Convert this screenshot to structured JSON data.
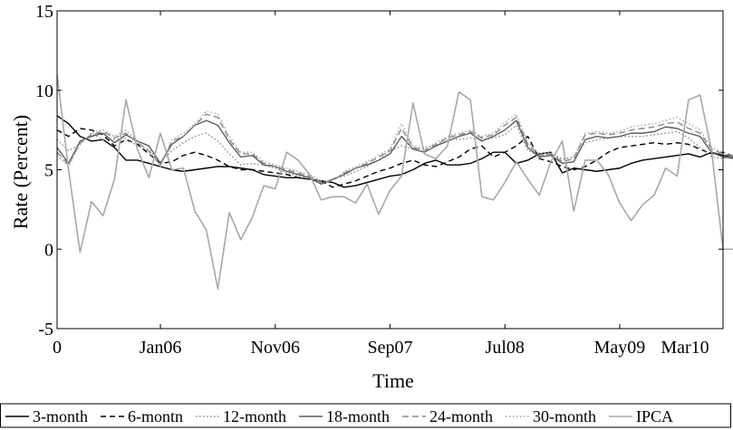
{
  "chart_data": {
    "type": "line",
    "xlabel": "Time",
    "ylabel": "Rate (Percent)",
    "xlim": [
      0,
      58
    ],
    "ylim": [
      -5,
      15
    ],
    "y_ticks": [
      -5,
      0,
      5,
      10,
      15
    ],
    "x_ticks": [
      {
        "x": 0,
        "label": "0"
      },
      {
        "x": 9,
        "label": "Jan06"
      },
      {
        "x": 19,
        "label": "Nov06"
      },
      {
        "x": 29,
        "label": "Sep07"
      },
      {
        "x": 39,
        "label": "Jul08"
      },
      {
        "x": 49,
        "label": "May09"
      },
      {
        "x": 59,
        "label": "Mar10"
      }
    ],
    "grid": false,
    "legend": "bottom",
    "series": [
      {
        "name": "3-month",
        "color": "#000000",
        "dash": "solid",
        "values": [
          8.4,
          7.9,
          7.1,
          6.8,
          6.9,
          6.4,
          5.6,
          5.6,
          5.4,
          5.2,
          5.0,
          4.9,
          5.0,
          5.1,
          5.2,
          5.2,
          5.1,
          5.0,
          4.7,
          4.6,
          4.5,
          4.5,
          4.4,
          4.3,
          4.2,
          3.9,
          4.0,
          4.2,
          4.4,
          4.6,
          4.7,
          5.0,
          5.4,
          5.6,
          5.3,
          5.3,
          5.4,
          5.7,
          6.1,
          6.1,
          5.4,
          5.6,
          6.0,
          6.1,
          4.8,
          5.1,
          5.0,
          4.9,
          5.0,
          5.1,
          5.4,
          5.6,
          5.7,
          5.8,
          5.9,
          6.0,
          5.8,
          6.1,
          5.9,
          5.8
        ]
      },
      {
        "name": "6-montn",
        "color": "#000000",
        "dash": "6,4",
        "values": [
          7.5,
          7.1,
          7.6,
          7.5,
          7.2,
          6.5,
          6.9,
          6.6,
          6.0,
          5.4,
          5.5,
          5.9,
          6.1,
          5.9,
          5.6,
          5.2,
          5.0,
          5.0,
          4.9,
          4.8,
          4.7,
          4.5,
          4.4,
          4.3,
          3.9,
          4.1,
          4.3,
          4.6,
          4.9,
          5.1,
          5.4,
          5.6,
          5.3,
          5.2,
          5.5,
          5.8,
          6.3,
          6.5,
          5.8,
          6.1,
          6.5,
          7.1,
          5.7,
          5.5,
          5.2,
          5.0,
          5.2,
          5.6,
          6.1,
          6.4,
          6.5,
          6.6,
          6.7,
          6.6,
          6.7,
          6.6,
          6.3,
          6.0,
          6.1,
          5.8
        ]
      },
      {
        "name": "12-month",
        "color": "#8a8a8a",
        "dash": "1.5,2.5",
        "values": [
          6.9,
          6.2,
          6.6,
          7.3,
          6.9,
          6.9,
          7.0,
          6.5,
          6.2,
          5.5,
          6.2,
          6.7,
          7.1,
          7.3,
          6.8,
          6.0,
          5.3,
          5.4,
          5.3,
          5.1,
          4.8,
          4.6,
          4.4,
          4.1,
          4.4,
          4.6,
          4.9,
          5.2,
          5.6,
          6.2,
          6.5,
          6.3,
          6.4,
          6.5,
          7.0,
          6.9,
          7.0,
          6.9,
          7.0,
          7.2,
          7.8,
          6.2,
          5.9,
          6.0,
          5.7,
          5.8,
          6.7,
          6.9,
          7.0,
          7.1,
          7.1,
          7.1,
          7.2,
          7.3,
          7.4,
          7.0,
          6.4,
          5.8,
          5.7,
          5.9
        ]
      },
      {
        "name": "18-month",
        "color": "#5e5e5e",
        "dash": "solid",
        "values": [
          6.4,
          5.4,
          6.8,
          7.1,
          7.3,
          6.7,
          7.2,
          6.8,
          6.5,
          5.4,
          6.6,
          7.1,
          7.8,
          8.1,
          7.8,
          6.7,
          5.8,
          5.9,
          5.3,
          5.2,
          4.9,
          4.7,
          4.5,
          4.1,
          4.4,
          4.7,
          5.1,
          5.3,
          5.6,
          6.0,
          7.1,
          6.3,
          6.1,
          6.5,
          6.8,
          7.1,
          7.3,
          6.8,
          7.1,
          7.5,
          8.1,
          6.4,
          5.8,
          5.9,
          5.4,
          5.5,
          6.9,
          7.1,
          7.0,
          7.1,
          7.3,
          7.3,
          7.4,
          7.7,
          7.6,
          7.3,
          7.1,
          6.1,
          5.8,
          5.7
        ]
      },
      {
        "name": "24-month",
        "color": "#8a8a8a",
        "dash": "7,4",
        "values": [
          6.1,
          5.3,
          6.7,
          7.2,
          7.4,
          7.0,
          7.3,
          6.7,
          6.2,
          5.3,
          6.8,
          7.1,
          7.8,
          8.5,
          8.3,
          6.9,
          6.0,
          6.0,
          5.4,
          5.2,
          5.0,
          4.8,
          4.6,
          4.2,
          4.3,
          4.8,
          5.1,
          5.4,
          5.8,
          6.2,
          7.6,
          6.4,
          6.2,
          6.6,
          7.0,
          7.2,
          7.4,
          7.0,
          7.2,
          7.8,
          8.3,
          6.6,
          5.9,
          6.0,
          5.5,
          5.7,
          7.2,
          7.3,
          7.2,
          7.3,
          7.5,
          7.6,
          7.7,
          7.9,
          8.0,
          7.6,
          7.3,
          6.3,
          6.0,
          5.8
        ]
      },
      {
        "name": "30-month",
        "color": "#a6a6a6",
        "dash": "1.5,2.5",
        "values": [
          5.9,
          5.2,
          6.6,
          7.3,
          7.5,
          7.1,
          7.5,
          6.8,
          6.1,
          5.2,
          6.9,
          7.3,
          7.9,
          8.7,
          8.5,
          7.1,
          6.1,
          6.1,
          5.5,
          5.3,
          5.1,
          4.9,
          4.7,
          4.3,
          4.3,
          4.9,
          5.2,
          5.5,
          5.9,
          6.3,
          7.9,
          6.5,
          6.3,
          6.7,
          7.1,
          7.3,
          7.5,
          7.1,
          7.3,
          8.0,
          8.5,
          6.7,
          6.0,
          6.1,
          5.6,
          5.8,
          7.3,
          7.4,
          7.3,
          7.4,
          7.7,
          7.8,
          7.9,
          8.1,
          8.3,
          7.9,
          7.5,
          6.4,
          6.1,
          5.9
        ]
      },
      {
        "name": "IPCA",
        "color": "#a8a8a8",
        "dash": "solid",
        "values": [
          11.0,
          5.0,
          -0.2,
          3.0,
          2.1,
          4.4,
          9.4,
          6.3,
          4.5,
          7.3,
          5.0,
          5.1,
          2.4,
          1.2,
          -2.5,
          2.3,
          0.6,
          2.0,
          4.0,
          3.8,
          6.1,
          5.6,
          4.7,
          3.1,
          3.3,
          3.3,
          2.9,
          4.1,
          2.2,
          3.7,
          4.6,
          9.2,
          6.0,
          5.7,
          6.5,
          9.9,
          9.4,
          3.3,
          3.1,
          4.2,
          5.5,
          4.4,
          3.4,
          5.5,
          6.8,
          2.4,
          5.6,
          5.6,
          4.7,
          2.9,
          1.8,
          2.8,
          3.4,
          5.1,
          4.6,
          9.4,
          9.7,
          6.2,
          0.0,
          0.0
        ]
      }
    ]
  }
}
